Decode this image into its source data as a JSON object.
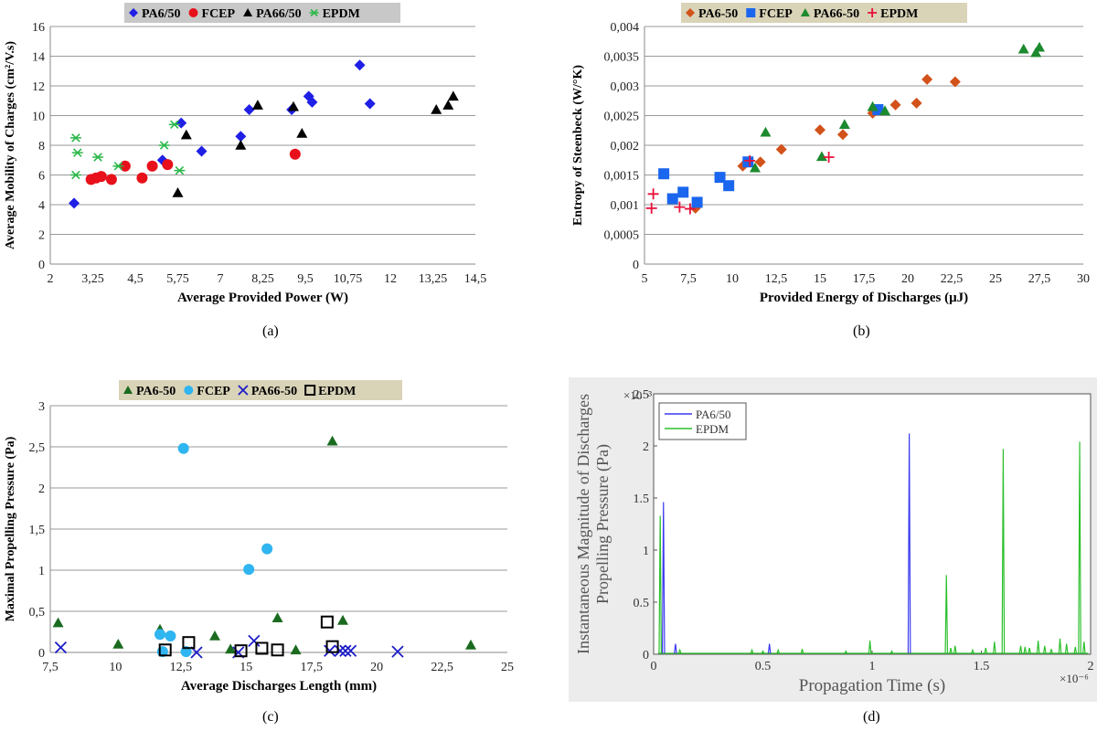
{
  "chart_data": [
    {
      "type": "scatter",
      "panel_label": "(a)",
      "xlabel": "Average Provided Power (W)",
      "ylabel": "Average Mobility of Charges  (cm²/V.s)",
      "xlim": [
        2,
        14.5
      ],
      "ylim": [
        0,
        16
      ],
      "xticks": [
        2,
        3.25,
        4.5,
        5.75,
        7,
        8.25,
        9.5,
        10.75,
        12,
        13.25,
        14.5
      ],
      "xtick_labels": [
        "2",
        "3,25",
        "4,5",
        "5,75",
        "7",
        "8,25",
        "9,5",
        "10,75",
        "12",
        "13,25",
        "14,5"
      ],
      "yticks": [
        0,
        2,
        4,
        6,
        8,
        10,
        12,
        14,
        16
      ],
      "ytick_labels": [
        "0",
        "2",
        "4",
        "6",
        "8",
        "10",
        "12",
        "14",
        "16"
      ],
      "legend_position": "top",
      "grid": true,
      "series": [
        {
          "name": "PA6/50",
          "marker": "diamond",
          "color": "#1f1fe6",
          "points": [
            [
              2.7,
              4.1
            ],
            [
              5.3,
              7.0
            ],
            [
              5.85,
              9.5
            ],
            [
              6.45,
              7.6
            ],
            [
              7.6,
              8.6
            ],
            [
              7.85,
              10.4
            ],
            [
              9.1,
              10.4
            ],
            [
              9.6,
              11.3
            ],
            [
              9.7,
              10.9
            ],
            [
              11.1,
              13.4
            ],
            [
              11.4,
              10.8
            ]
          ]
        },
        {
          "name": "FCEP",
          "marker": "circle",
          "color": "#e8101a",
          "points": [
            [
              3.2,
              5.7
            ],
            [
              3.35,
              5.8
            ],
            [
              3.5,
              5.9
            ],
            [
              3.8,
              5.7
            ],
            [
              4.2,
              6.6
            ],
            [
              4.7,
              5.8
            ],
            [
              5.0,
              6.6
            ],
            [
              5.45,
              6.7
            ],
            [
              9.2,
              7.4
            ]
          ]
        },
        {
          "name": "PA66/50",
          "marker": "triangle",
          "color": "#000000",
          "points": [
            [
              5.75,
              4.8
            ],
            [
              6.0,
              8.7
            ],
            [
              7.6,
              8.0
            ],
            [
              8.1,
              10.7
            ],
            [
              9.15,
              10.6
            ],
            [
              9.4,
              8.8
            ],
            [
              13.35,
              10.4
            ],
            [
              13.7,
              10.7
            ],
            [
              13.85,
              11.3
            ]
          ]
        },
        {
          "name": "EPDM",
          "marker": "asterisk",
          "color": "#2db84a",
          "points": [
            [
              2.75,
              8.5
            ],
            [
              2.8,
              7.5
            ],
            [
              2.75,
              6.0
            ],
            [
              3.4,
              7.2
            ],
            [
              4.0,
              6.6
            ],
            [
              5.35,
              8.0
            ],
            [
              5.65,
              9.4
            ],
            [
              5.8,
              6.3
            ]
          ]
        }
      ]
    },
    {
      "type": "scatter",
      "panel_label": "(b)",
      "xlabel": "Provided Energy of Discharges (μJ)",
      "ylabel": "Entropy of Steenbeck (W/°K)",
      "xlim": [
        5,
        30
      ],
      "ylim": [
        0,
        0.004
      ],
      "xticks": [
        5,
        7.5,
        10,
        12.5,
        15,
        17.5,
        20,
        22.5,
        25,
        27.5,
        30
      ],
      "xtick_labels": [
        "5",
        "7,5",
        "10",
        "12,5",
        "15",
        "17,5",
        "20",
        "22,5",
        "25",
        "27,5",
        "30"
      ],
      "yticks": [
        0,
        0.0005,
        0.001,
        0.0015,
        0.002,
        0.0025,
        0.003,
        0.0035,
        0.004
      ],
      "ytick_labels": [
        "0",
        "0,0005",
        "0,001",
        "0,0015",
        "0,002",
        "0,0025",
        "0,003",
        "0,0035",
        "0,004"
      ],
      "legend_position": "top",
      "grid": true,
      "series": [
        {
          "name": "PA6-50",
          "marker": "diamond",
          "color": "#d2521a",
          "points": [
            [
              7.9,
              0.00094
            ],
            [
              10.6,
              0.00165
            ],
            [
              11.6,
              0.00172
            ],
            [
              12.8,
              0.00193
            ],
            [
              15.0,
              0.00226
            ],
            [
              16.3,
              0.00218
            ],
            [
              18.0,
              0.00254
            ],
            [
              19.3,
              0.00268
            ],
            [
              20.5,
              0.00271
            ],
            [
              21.1,
              0.00311
            ],
            [
              22.7,
              0.00307
            ]
          ]
        },
        {
          "name": "FCEP",
          "marker": "square",
          "color": "#1a66ee",
          "points": [
            [
              6.1,
              0.00152
            ],
            [
              6.6,
              0.0011
            ],
            [
              7.2,
              0.00121
            ],
            [
              8.0,
              0.00104
            ],
            [
              9.3,
              0.00146
            ],
            [
              9.8,
              0.00132
            ],
            [
              10.9,
              0.00172
            ],
            [
              18.3,
              0.0026
            ]
          ]
        },
        {
          "name": "PA66-50",
          "marker": "triangle",
          "color": "#1c8a2e",
          "points": [
            [
              11.3,
              0.00162
            ],
            [
              11.9,
              0.00222
            ],
            [
              15.1,
              0.00181
            ],
            [
              16.4,
              0.00235
            ],
            [
              18.0,
              0.00265
            ],
            [
              18.7,
              0.00258
            ],
            [
              26.6,
              0.00362
            ],
            [
              27.3,
              0.00356
            ],
            [
              27.5,
              0.00365
            ]
          ]
        },
        {
          "name": "EPDM",
          "marker": "plus",
          "color": "#e8103a",
          "points": [
            [
              5.5,
              0.00118
            ],
            [
              5.4,
              0.00094
            ],
            [
              7.0,
              0.00096
            ],
            [
              7.6,
              0.00093
            ],
            [
              11.0,
              0.00174
            ],
            [
              15.5,
              0.0018
            ]
          ]
        }
      ]
    },
    {
      "type": "scatter",
      "panel_label": "(c)",
      "xlabel": "Average Discharges Length (mm)",
      "ylabel": "Maximal Propelling Pressure (Pa)",
      "xlim": [
        7.5,
        25
      ],
      "ylim": [
        0,
        3
      ],
      "xticks": [
        7.5,
        10,
        12.5,
        15,
        17.5,
        20,
        22.5,
        25
      ],
      "xtick_labels": [
        "7,5",
        "10",
        "12,5",
        "15",
        "17,5",
        "20",
        "22,5",
        "25"
      ],
      "yticks": [
        0,
        0.5,
        1,
        1.5,
        2,
        2.5,
        3
      ],
      "ytick_labels": [
        "0",
        "0,5",
        "1",
        "1,5",
        "2",
        "2,5",
        "3"
      ],
      "legend_position": "top",
      "grid": true,
      "series": [
        {
          "name": "PA6-50",
          "marker": "triangle",
          "color": "#1a6b1f",
          "points": [
            [
              7.8,
              0.36
            ],
            [
              10.1,
              0.1
            ],
            [
              11.7,
              0.28
            ],
            [
              13.8,
              0.2
            ],
            [
              14.4,
              0.04
            ],
            [
              16.2,
              0.42
            ],
            [
              16.9,
              0.03
            ],
            [
              18.3,
              2.57
            ],
            [
              18.7,
              0.39
            ],
            [
              23.6,
              0.09
            ]
          ]
        },
        {
          "name": "FCEP",
          "marker": "circle",
          "color": "#2fb5f0",
          "points": [
            [
              11.7,
              0.22
            ],
            [
              11.8,
              0.01
            ],
            [
              12.1,
              0.2
            ],
            [
              12.6,
              2.48
            ],
            [
              12.7,
              0.01
            ],
            [
              15.1,
              1.01
            ],
            [
              15.8,
              1.26
            ]
          ]
        },
        {
          "name": "PA66-50",
          "marker": "x",
          "color": "#1c1cc8",
          "points": [
            [
              7.9,
              0.06
            ],
            [
              13.1,
              0.0
            ],
            [
              14.7,
              0.0
            ],
            [
              15.3,
              0.14
            ],
            [
              18.2,
              0.02
            ],
            [
              18.6,
              0.02
            ],
            [
              18.8,
              0.02
            ],
            [
              19.0,
              0.02
            ],
            [
              20.8,
              0.01
            ]
          ]
        },
        {
          "name": "EPDM",
          "marker": "square",
          "color": "#000000",
          "points": [
            [
              11.9,
              0.03
            ],
            [
              12.8,
              0.12
            ],
            [
              14.8,
              0.02
            ],
            [
              15.6,
              0.05
            ],
            [
              16.2,
              0.03
            ],
            [
              18.1,
              0.37
            ],
            [
              18.3,
              0.07
            ]
          ]
        }
      ]
    },
    {
      "type": "line",
      "panel_label": "(d)",
      "xlabel": "Propagation Time (s)",
      "ylabel": "Instantaneous Magnitude of Discharges Propelling Pressure  (Pa)",
      "x_exponent": "×10⁻⁶",
      "y_exponent": "×10⁻³",
      "xlim": [
        0,
        2
      ],
      "ylim": [
        0,
        2.5
      ],
      "xticks": [
        0,
        0.5,
        1,
        1.5,
        2
      ],
      "xtick_labels": [
        "0",
        "0.5",
        "1",
        "1.5",
        "2"
      ],
      "yticks": [
        0,
        0.5,
        1,
        1.5,
        2,
        2.5
      ],
      "ytick_labels": [
        "0",
        "0.5",
        "1",
        "1.5",
        "2",
        "2.5"
      ],
      "legend_position": "top-left",
      "grid": false,
      "series": [
        {
          "name": "PA6/50",
          "color": "#3a3af0",
          "spikes": [
            [
              0.045,
              1.46
            ],
            [
              0.1,
              0.1
            ],
            [
              0.53,
              0.1
            ],
            [
              1.17,
              2.12
            ]
          ]
        },
        {
          "name": "EPDM",
          "color": "#2cc02c",
          "spikes": [
            [
              0.03,
              1.33
            ],
            [
              0.12,
              0.04
            ],
            [
              0.45,
              0.04
            ],
            [
              0.5,
              0.03
            ],
            [
              0.57,
              0.04
            ],
            [
              0.68,
              0.05
            ],
            [
              0.88,
              0.03
            ],
            [
              0.99,
              0.13
            ],
            [
              1.09,
              0.03
            ],
            [
              1.34,
              0.76
            ],
            [
              1.36,
              0.06
            ],
            [
              1.38,
              0.08
            ],
            [
              1.46,
              0.04
            ],
            [
              1.52,
              0.06
            ],
            [
              1.56,
              0.12
            ],
            [
              1.6,
              1.97
            ],
            [
              1.68,
              0.08
            ],
            [
              1.7,
              0.07
            ],
            [
              1.72,
              0.06
            ],
            [
              1.76,
              0.13
            ],
            [
              1.79,
              0.08
            ],
            [
              1.82,
              0.05
            ],
            [
              1.86,
              0.15
            ],
            [
              1.89,
              0.1
            ],
            [
              1.93,
              0.07
            ],
            [
              1.95,
              2.04
            ],
            [
              1.97,
              0.12
            ]
          ]
        }
      ]
    }
  ]
}
